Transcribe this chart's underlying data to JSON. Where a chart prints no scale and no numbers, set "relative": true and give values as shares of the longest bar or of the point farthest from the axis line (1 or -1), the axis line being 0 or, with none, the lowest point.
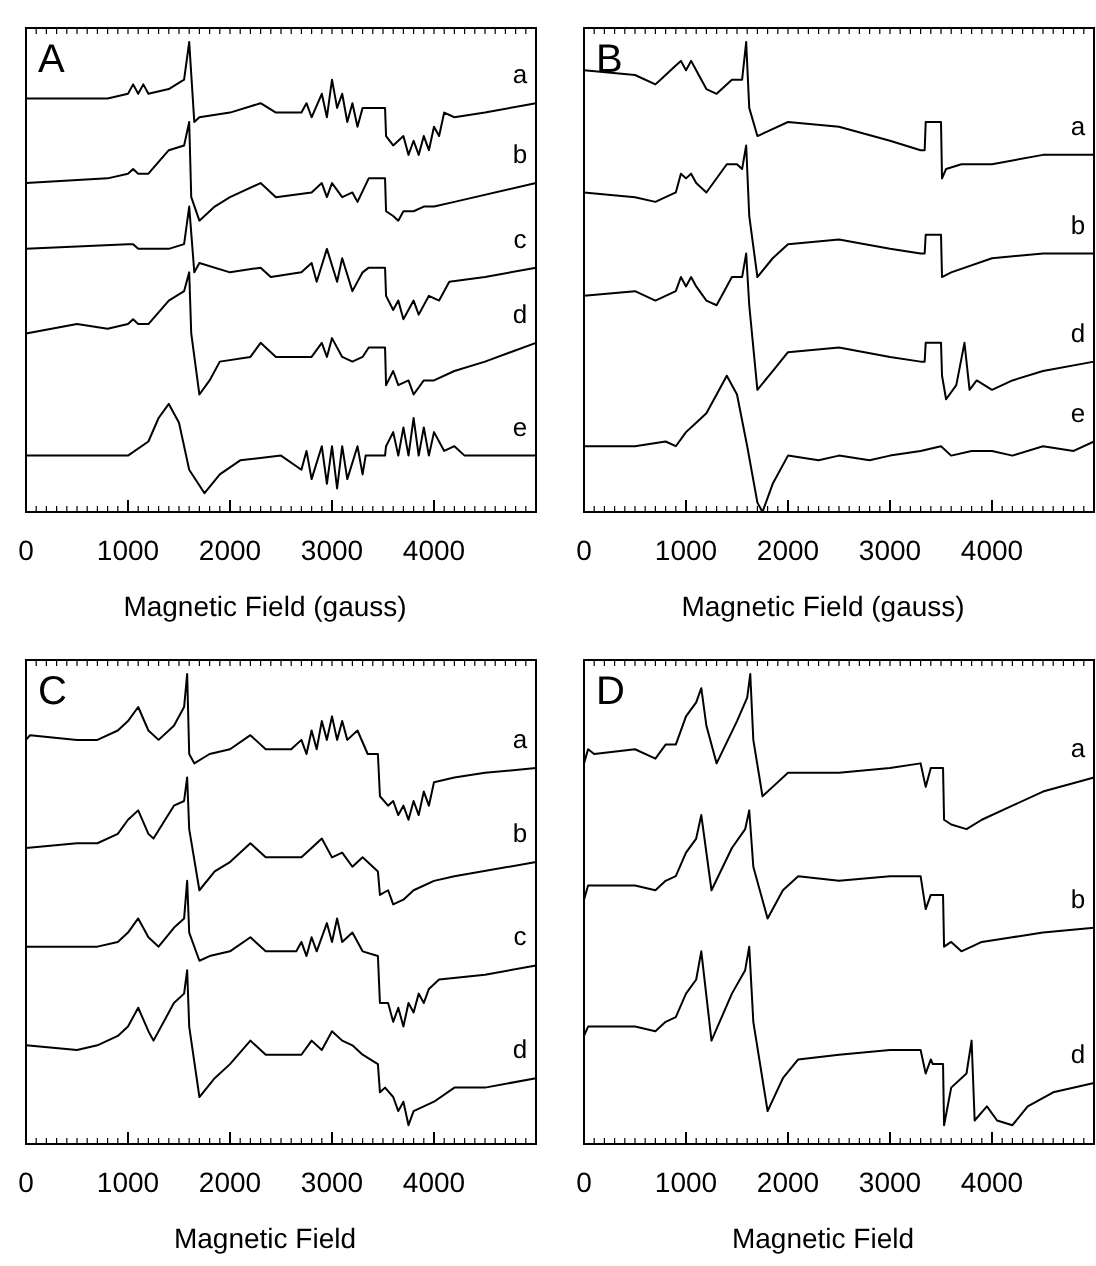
{
  "chart_data": [
    {
      "type": "line",
      "title": "A",
      "xlabel": "Magnetic Field (gauss)",
      "xlim": [
        0,
        5000
      ],
      "xticks": [
        0,
        1000,
        2000,
        3000,
        4000
      ],
      "relative": true,
      "tick_labels": "x",
      "series": [
        {
          "name": "a",
          "color": "#000000",
          "x": [
            0,
            500,
            800,
            1000,
            1050,
            1100,
            1150,
            1200,
            1400,
            1550,
            1600,
            1650,
            1700,
            2000,
            2300,
            2450,
            2700,
            2750,
            2800,
            2900,
            2950,
            3000,
            3050,
            3100,
            3150,
            3200,
            3250,
            3300,
            3360,
            3520,
            3530,
            3600,
            3700,
            3750,
            3800,
            3850,
            3900,
            3950,
            4000,
            4050,
            4100,
            4200,
            4500,
            5000
          ],
          "values": [
            0.88,
            0.88,
            0.88,
            0.89,
            0.91,
            0.89,
            0.91,
            0.89,
            0.9,
            0.92,
            1.0,
            0.83,
            0.84,
            0.85,
            0.87,
            0.85,
            0.85,
            0.87,
            0.84,
            0.89,
            0.84,
            0.92,
            0.86,
            0.89,
            0.83,
            0.87,
            0.82,
            0.86,
            0.86,
            0.86,
            0.8,
            0.78,
            0.8,
            0.76,
            0.79,
            0.76,
            0.8,
            0.77,
            0.82,
            0.8,
            0.85,
            0.84,
            0.85,
            0.87
          ]
        },
        {
          "name": "b",
          "color": "#000000",
          "x": [
            0,
            800,
            1000,
            1050,
            1100,
            1200,
            1400,
            1550,
            1600,
            1620,
            1700,
            1850,
            2000,
            2300,
            2450,
            2800,
            2900,
            2950,
            3000,
            3100,
            3200,
            3250,
            3360,
            3520,
            3530,
            3600,
            3650,
            3700,
            3800,
            3900,
            4000,
            4200,
            5000
          ],
          "values": [
            0.7,
            0.71,
            0.72,
            0.73,
            0.72,
            0.72,
            0.77,
            0.78,
            0.83,
            0.67,
            0.62,
            0.65,
            0.67,
            0.7,
            0.67,
            0.68,
            0.7,
            0.67,
            0.7,
            0.67,
            0.68,
            0.66,
            0.71,
            0.71,
            0.64,
            0.63,
            0.62,
            0.64,
            0.64,
            0.65,
            0.65,
            0.66,
            0.7
          ]
        },
        {
          "name": "c",
          "color": "#000000",
          "x": [
            0,
            1000,
            1050,
            1100,
            1200,
            1400,
            1550,
            1600,
            1650,
            1700,
            2000,
            2300,
            2400,
            2700,
            2800,
            2850,
            2950,
            3050,
            3100,
            3200,
            3300,
            3360,
            3520,
            3530,
            3600,
            3650,
            3700,
            3800,
            3850,
            3950,
            4050,
            4150,
            4500,
            5000
          ],
          "values": [
            0.56,
            0.57,
            0.57,
            0.56,
            0.56,
            0.56,
            0.57,
            0.65,
            0.51,
            0.53,
            0.51,
            0.52,
            0.5,
            0.51,
            0.53,
            0.49,
            0.56,
            0.49,
            0.54,
            0.47,
            0.51,
            0.52,
            0.52,
            0.46,
            0.43,
            0.45,
            0.41,
            0.45,
            0.42,
            0.46,
            0.45,
            0.49,
            0.5,
            0.52
          ]
        },
        {
          "name": "d",
          "color": "#000000",
          "x": [
            0,
            500,
            800,
            1000,
            1050,
            1100,
            1200,
            1400,
            1550,
            1600,
            1620,
            1700,
            1800,
            1900,
            2200,
            2300,
            2450,
            2800,
            2900,
            2950,
            3000,
            3100,
            3200,
            3300,
            3360,
            3520,
            3530,
            3600,
            3650,
            3750,
            3800,
            3900,
            4000,
            4200,
            4500,
            5000
          ],
          "values": [
            0.38,
            0.4,
            0.39,
            0.4,
            0.41,
            0.4,
            0.4,
            0.45,
            0.47,
            0.51,
            0.38,
            0.25,
            0.28,
            0.32,
            0.33,
            0.36,
            0.33,
            0.33,
            0.36,
            0.33,
            0.37,
            0.33,
            0.32,
            0.33,
            0.35,
            0.35,
            0.27,
            0.3,
            0.27,
            0.28,
            0.25,
            0.28,
            0.28,
            0.3,
            0.32,
            0.36
          ]
        },
        {
          "name": "e",
          "color": "#000000",
          "x": [
            0,
            1000,
            1200,
            1300,
            1400,
            1500,
            1600,
            1750,
            1900,
            2100,
            2500,
            2700,
            2750,
            2800,
            2900,
            2950,
            3000,
            3050,
            3100,
            3150,
            3250,
            3300,
            3330,
            3400,
            3520,
            3530,
            3600,
            3650,
            3700,
            3750,
            3800,
            3850,
            3900,
            3950,
            4000,
            4100,
            4200,
            4300,
            5000
          ],
          "values": [
            0.12,
            0.12,
            0.15,
            0.2,
            0.23,
            0.19,
            0.09,
            0.04,
            0.08,
            0.11,
            0.12,
            0.09,
            0.13,
            0.07,
            0.14,
            0.06,
            0.14,
            0.05,
            0.14,
            0.07,
            0.14,
            0.08,
            0.12,
            0.12,
            0.12,
            0.14,
            0.17,
            0.12,
            0.18,
            0.12,
            0.2,
            0.12,
            0.18,
            0.12,
            0.17,
            0.13,
            0.14,
            0.12,
            0.12
          ]
        }
      ]
    },
    {
      "type": "line",
      "title": "B",
      "xlabel": "Magnetic Field (gauss)",
      "xlim": [
        0,
        5000
      ],
      "xticks": [
        0,
        1000,
        2000,
        3000,
        4000
      ],
      "relative": true,
      "tick_labels": "x",
      "series": [
        {
          "name": "a",
          "color": "#000000",
          "x": [
            0,
            500,
            700,
            750,
            900,
            950,
            1000,
            1050,
            1100,
            1200,
            1300,
            1450,
            1550,
            1590,
            1620,
            1700,
            1800,
            2000,
            2500,
            3000,
            3300,
            3340,
            3350,
            3500,
            3510,
            3550,
            3700,
            4000,
            4500,
            5000
          ],
          "values": [
            0.94,
            0.93,
            0.91,
            0.92,
            0.95,
            0.96,
            0.94,
            0.96,
            0.94,
            0.9,
            0.89,
            0.92,
            0.92,
            1.0,
            0.86,
            0.8,
            0.81,
            0.83,
            0.82,
            0.79,
            0.77,
            0.77,
            0.83,
            0.83,
            0.71,
            0.73,
            0.74,
            0.74,
            0.76,
            0.76
          ]
        },
        {
          "name": "b",
          "color": "#000000",
          "x": [
            0,
            500,
            700,
            900,
            950,
            1000,
            1050,
            1100,
            1200,
            1400,
            1500,
            1550,
            1590,
            1620,
            1700,
            1850,
            2000,
            2500,
            3000,
            3300,
            3340,
            3350,
            3500,
            3510,
            3600,
            4000,
            4500,
            5000
          ],
          "values": [
            0.68,
            0.67,
            0.66,
            0.68,
            0.72,
            0.71,
            0.72,
            0.7,
            0.68,
            0.74,
            0.74,
            0.73,
            0.78,
            0.63,
            0.5,
            0.54,
            0.57,
            0.58,
            0.56,
            0.55,
            0.55,
            0.59,
            0.59,
            0.5,
            0.51,
            0.54,
            0.55,
            0.55
          ]
        },
        {
          "name": "d",
          "color": "#000000",
          "x": [
            0,
            500,
            700,
            900,
            950,
            1000,
            1050,
            1100,
            1200,
            1300,
            1450,
            1550,
            1590,
            1620,
            1700,
            1850,
            2000,
            2500,
            3000,
            3300,
            3340,
            3350,
            3500,
            3510,
            3550,
            3650,
            3730,
            3780,
            3850,
            4000,
            4200,
            4500,
            5000
          ],
          "values": [
            0.46,
            0.47,
            0.45,
            0.47,
            0.5,
            0.48,
            0.5,
            0.48,
            0.45,
            0.44,
            0.5,
            0.5,
            0.55,
            0.44,
            0.26,
            0.3,
            0.34,
            0.35,
            0.33,
            0.32,
            0.32,
            0.36,
            0.36,
            0.29,
            0.24,
            0.27,
            0.36,
            0.26,
            0.28,
            0.26,
            0.28,
            0.3,
            0.32
          ]
        },
        {
          "name": "e",
          "color": "#000000",
          "x": [
            0,
            500,
            800,
            900,
            1000,
            1100,
            1200,
            1300,
            1400,
            1500,
            1600,
            1700,
            1750,
            1850,
            2000,
            2300,
            2500,
            2800,
            3000,
            3300,
            3500,
            3600,
            3800,
            4000,
            4200,
            4500,
            4800,
            5000
          ],
          "values": [
            0.14,
            0.14,
            0.15,
            0.14,
            0.17,
            0.19,
            0.21,
            0.25,
            0.29,
            0.25,
            0.14,
            0.02,
            0.0,
            0.06,
            0.12,
            0.11,
            0.12,
            0.11,
            0.12,
            0.13,
            0.14,
            0.12,
            0.13,
            0.13,
            0.12,
            0.14,
            0.13,
            0.15
          ]
        }
      ]
    },
    {
      "type": "line",
      "title": "C",
      "xlabel": "Magnetic Field",
      "xlim": [
        0,
        5000
      ],
      "xticks": [
        0,
        1000,
        2000,
        3000,
        4000
      ],
      "relative": true,
      "tick_labels": "x",
      "series": [
        {
          "name": "a",
          "color": "#000000",
          "x": [
            0,
            40,
            500,
            700,
            900,
            1000,
            1100,
            1200,
            1300,
            1450,
            1550,
            1580,
            1600,
            1650,
            1800,
            2000,
            2200,
            2350,
            2600,
            2700,
            2750,
            2800,
            2850,
            2900,
            2950,
            3000,
            3050,
            3100,
            3150,
            3250,
            3350,
            3450,
            3470,
            3550,
            3600,
            3650,
            3700,
            3750,
            3800,
            3850,
            3900,
            3950,
            4000,
            4200,
            4500,
            5000
          ],
          "values": [
            0.86,
            0.87,
            0.86,
            0.86,
            0.88,
            0.9,
            0.93,
            0.88,
            0.86,
            0.89,
            0.93,
            1.0,
            0.83,
            0.81,
            0.83,
            0.84,
            0.87,
            0.84,
            0.84,
            0.86,
            0.83,
            0.88,
            0.84,
            0.9,
            0.86,
            0.91,
            0.86,
            0.9,
            0.86,
            0.88,
            0.83,
            0.83,
            0.74,
            0.72,
            0.73,
            0.7,
            0.72,
            0.69,
            0.73,
            0.7,
            0.75,
            0.72,
            0.77,
            0.78,
            0.79,
            0.8
          ]
        },
        {
          "name": "b",
          "color": "#000000",
          "x": [
            0,
            500,
            700,
            900,
            1000,
            1100,
            1200,
            1250,
            1450,
            1550,
            1580,
            1600,
            1700,
            1850,
            2000,
            2200,
            2350,
            2700,
            2800,
            2900,
            3000,
            3100,
            3200,
            3300,
            3450,
            3470,
            3550,
            3600,
            3700,
            3800,
            4000,
            4200,
            5000
          ],
          "values": [
            0.63,
            0.64,
            0.64,
            0.66,
            0.69,
            0.71,
            0.66,
            0.65,
            0.72,
            0.73,
            0.78,
            0.67,
            0.54,
            0.58,
            0.6,
            0.64,
            0.61,
            0.61,
            0.63,
            0.65,
            0.61,
            0.62,
            0.59,
            0.61,
            0.58,
            0.53,
            0.54,
            0.51,
            0.52,
            0.54,
            0.56,
            0.57,
            0.6
          ]
        },
        {
          "name": "c",
          "color": "#000000",
          "x": [
            0,
            500,
            700,
            900,
            1000,
            1100,
            1200,
            1300,
            1450,
            1550,
            1580,
            1600,
            1700,
            1800,
            2000,
            2200,
            2350,
            2650,
            2700,
            2750,
            2800,
            2850,
            2950,
            3000,
            3050,
            3100,
            3200,
            3300,
            3450,
            3470,
            3550,
            3600,
            3650,
            3700,
            3750,
            3800,
            3850,
            3900,
            3950,
            4050,
            4500,
            5000
          ],
          "values": [
            0.42,
            0.42,
            0.42,
            0.43,
            0.45,
            0.48,
            0.44,
            0.42,
            0.46,
            0.48,
            0.56,
            0.45,
            0.39,
            0.4,
            0.41,
            0.44,
            0.41,
            0.41,
            0.43,
            0.4,
            0.44,
            0.41,
            0.47,
            0.43,
            0.48,
            0.43,
            0.45,
            0.41,
            0.4,
            0.3,
            0.3,
            0.26,
            0.29,
            0.25,
            0.3,
            0.28,
            0.32,
            0.3,
            0.33,
            0.35,
            0.36,
            0.38
          ]
        },
        {
          "name": "d",
          "color": "#000000",
          "x": [
            0,
            500,
            700,
            900,
            1000,
            1100,
            1200,
            1250,
            1450,
            1550,
            1580,
            1600,
            1700,
            1850,
            2000,
            2200,
            2350,
            2700,
            2800,
            2900,
            3000,
            3100,
            3200,
            3300,
            3450,
            3470,
            3520,
            3600,
            3650,
            3700,
            3750,
            3800,
            3900,
            4000,
            4200,
            4500,
            5000
          ],
          "values": [
            0.21,
            0.2,
            0.21,
            0.23,
            0.25,
            0.29,
            0.24,
            0.22,
            0.3,
            0.32,
            0.37,
            0.25,
            0.1,
            0.14,
            0.17,
            0.22,
            0.19,
            0.19,
            0.22,
            0.2,
            0.24,
            0.22,
            0.21,
            0.19,
            0.17,
            0.11,
            0.12,
            0.1,
            0.07,
            0.09,
            0.04,
            0.07,
            0.08,
            0.09,
            0.12,
            0.12,
            0.14
          ]
        }
      ]
    },
    {
      "type": "line",
      "title": "D",
      "xlabel": "Magnetic Field",
      "xlim": [
        0,
        5000
      ],
      "xticks": [
        0,
        1000,
        2000,
        3000,
        4000
      ],
      "relative": true,
      "tick_labels": "x",
      "series": [
        {
          "name": "a",
          "color": "#000000",
          "x": [
            0,
            40,
            100,
            500,
            700,
            800,
            900,
            1000,
            1100,
            1150,
            1200,
            1300,
            1500,
            1600,
            1630,
            1660,
            1750,
            1850,
            2000,
            2500,
            3000,
            3300,
            3350,
            3400,
            3410,
            3520,
            3530,
            3600,
            3750,
            3900,
            4200,
            4500,
            5000
          ],
          "values": [
            0.81,
            0.84,
            0.83,
            0.84,
            0.82,
            0.85,
            0.85,
            0.91,
            0.94,
            0.97,
            0.89,
            0.81,
            0.9,
            0.95,
            1.0,
            0.86,
            0.74,
            0.76,
            0.79,
            0.79,
            0.8,
            0.81,
            0.76,
            0.8,
            0.8,
            0.8,
            0.69,
            0.68,
            0.67,
            0.69,
            0.72,
            0.75,
            0.78
          ]
        },
        {
          "name": "b",
          "color": "#000000",
          "x": [
            0,
            40,
            500,
            700,
            800,
            900,
            1000,
            1100,
            1150,
            1250,
            1450,
            1580,
            1620,
            1660,
            1800,
            1950,
            2100,
            2500,
            3000,
            3300,
            3350,
            3400,
            3410,
            3520,
            3530,
            3600,
            3700,
            3900,
            4200,
            4500,
            5000
          ],
          "values": [
            0.52,
            0.55,
            0.55,
            0.54,
            0.56,
            0.57,
            0.62,
            0.65,
            0.7,
            0.54,
            0.63,
            0.67,
            0.71,
            0.59,
            0.48,
            0.54,
            0.57,
            0.56,
            0.57,
            0.57,
            0.5,
            0.53,
            0.53,
            0.53,
            0.42,
            0.43,
            0.41,
            0.43,
            0.44,
            0.45,
            0.46
          ]
        },
        {
          "name": "d",
          "color": "#000000",
          "x": [
            0,
            40,
            500,
            700,
            800,
            900,
            1000,
            1100,
            1150,
            1250,
            1450,
            1580,
            1620,
            1660,
            1800,
            1950,
            2100,
            2500,
            3000,
            3300,
            3350,
            3400,
            3420,
            3520,
            3530,
            3600,
            3750,
            3800,
            3830,
            3950,
            4050,
            4200,
            4350,
            4600,
            5000
          ],
          "values": [
            0.23,
            0.25,
            0.25,
            0.24,
            0.26,
            0.27,
            0.32,
            0.35,
            0.41,
            0.22,
            0.32,
            0.37,
            0.42,
            0.26,
            0.07,
            0.14,
            0.18,
            0.19,
            0.2,
            0.2,
            0.15,
            0.18,
            0.17,
            0.17,
            0.04,
            0.12,
            0.15,
            0.22,
            0.05,
            0.08,
            0.05,
            0.04,
            0.08,
            0.11,
            0.13
          ]
        }
      ]
    }
  ]
}
